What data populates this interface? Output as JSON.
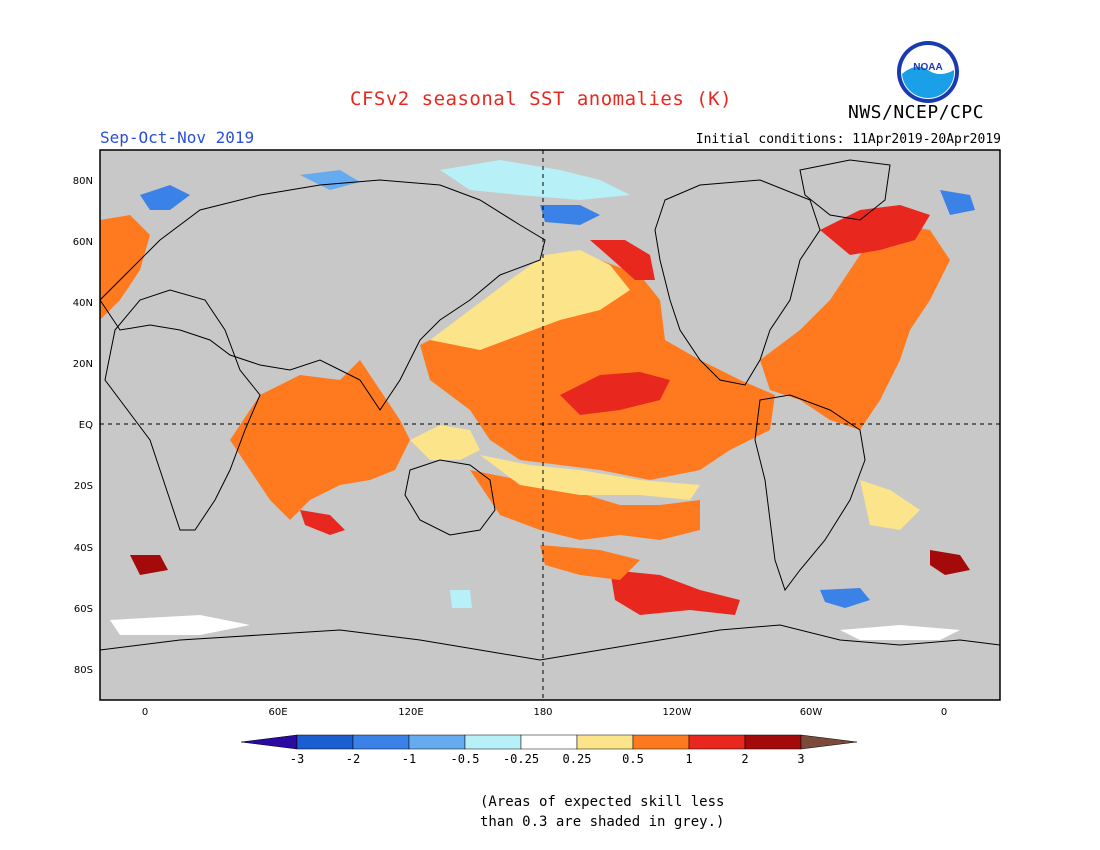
{
  "header": {
    "title": "CFSv2 seasonal SST anomalies (K)",
    "agency": "NWS/NCEP/CPC",
    "season": "Sep-Oct-Nov 2019",
    "initial_conditions": "Initial conditions: 11Apr2019-20Apr2019",
    "logo_text": "NOAA"
  },
  "map": {
    "lat_labels": [
      "80N",
      "60N",
      "40N",
      "20N",
      "EQ",
      "20S",
      "40S",
      "60S",
      "80S"
    ],
    "lon_labels": [
      "0",
      "60E",
      "120E",
      "180",
      "120W",
      "60W",
      "0"
    ],
    "grey_color": "#c8c8c8"
  },
  "colorbar": {
    "ticks": [
      "-3",
      "-2",
      "-1",
      "-0.5",
      "-0.25",
      "0.25",
      "0.5",
      "1",
      "2",
      "3"
    ],
    "colors": [
      "#2a0aa0",
      "#1a5ed0",
      "#3a82e8",
      "#66aaf0",
      "#b8f0f8",
      "#ffffff",
      "#fbe48a",
      "#ff7a1e",
      "#e8281e",
      "#a50a0a",
      "#7a4a3a"
    ]
  },
  "note": {
    "line1": "(Areas of expected skill less",
    "line2": "than 0.3 are shaded in grey.)"
  }
}
